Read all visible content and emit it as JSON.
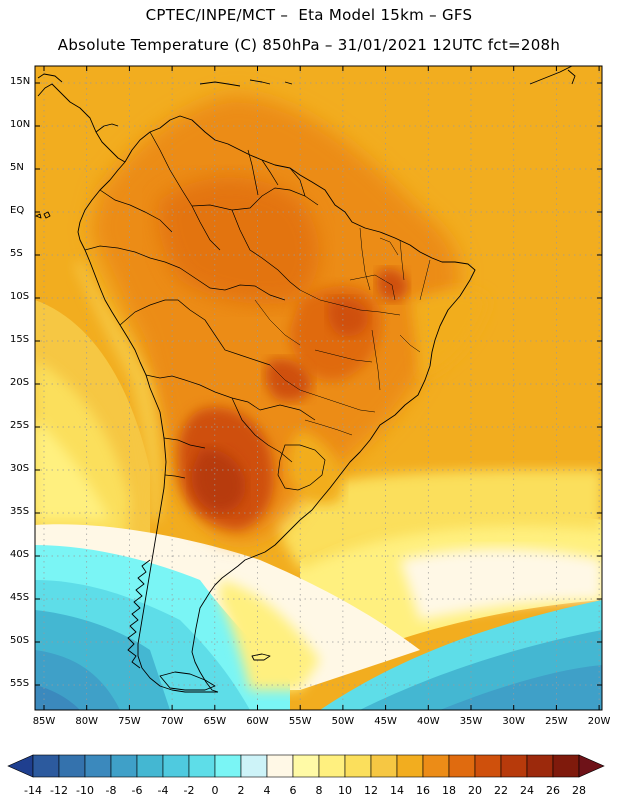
{
  "header": {
    "line1": "CPTEC/INPE/MCT –  Eta Model 15km – GFS",
    "line2": "Absolute Temperature (C) 850hPa – 31/01/2021 12UTC fct=208h"
  },
  "map": {
    "lat_ticks": [
      "15N",
      "10N",
      "5N",
      "EQ",
      "5S",
      "10S",
      "15S",
      "20S",
      "25S",
      "30S",
      "35S",
      "40S",
      "45S",
      "50S",
      "55S"
    ],
    "lon_ticks": [
      "85W",
      "80W",
      "75W",
      "70W",
      "65W",
      "60W",
      "55W",
      "50W",
      "45W",
      "40W",
      "35W",
      "30W",
      "25W",
      "20W"
    ]
  },
  "colorbar": {
    "labels": [
      "-14",
      "-12",
      "-10",
      "-8",
      "-6",
      "-4",
      "-2",
      "0",
      "2",
      "4",
      "6",
      "8",
      "10",
      "12",
      "14",
      "16",
      "18",
      "20",
      "22",
      "24",
      "26",
      "28"
    ],
    "colors": [
      "#1f3f8f",
      "#2c5a9e",
      "#3472ad",
      "#3b89bd",
      "#3fa0c8",
      "#44b7d2",
      "#4fcadf",
      "#5edde8",
      "#7af5f5",
      "#cdf3f8",
      "#fff8e6",
      "#fffaa6",
      "#fff07f",
      "#fbdf5c",
      "#f6c743",
      "#f2ad1f",
      "#ec8c17",
      "#e06b0f",
      "#cf500c",
      "#b73a0b",
      "#9c290c",
      "#7f1a0c",
      "#6e1218"
    ]
  }
}
